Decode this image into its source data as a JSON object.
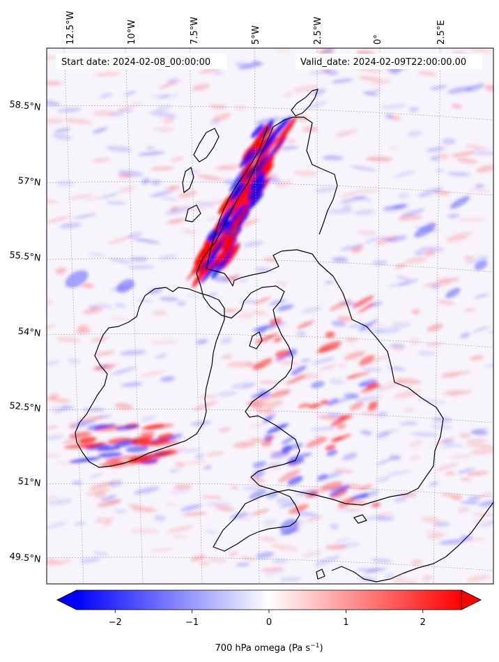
{
  "map": {
    "start_label": "Start date: 2024-02-08_00:00:00",
    "valid_label": "Valid_date: 2024-02-09T22:00:00.00",
    "lon_labels": [
      "12.5°W",
      "10°W",
      "7.5°W",
      "5°W",
      "2.5°W",
      "0°",
      "2.5°E"
    ],
    "lat_labels": [
      "58.5°N",
      "57°N",
      "55.5°N",
      "54°N",
      "52.5°N",
      "51°N",
      "49.5°N"
    ],
    "projection": "conic",
    "gridlines": true,
    "coastline_color": "#000000"
  },
  "colorbar": {
    "label_prefix": "700 hPa omega (Pa s",
    "label_exp": "−1",
    "label_suffix": ")",
    "tick_labels": [
      "−2",
      "−1",
      "0",
      "1",
      "2"
    ],
    "tick_values": [
      -2,
      -1,
      0,
      1,
      2
    ],
    "range": [
      -2.5,
      2.5
    ],
    "colormap": "bwr",
    "color_low": "#0000ff",
    "color_mid": "#ffffff",
    "color_high": "#ff0000",
    "extend": "both"
  }
}
